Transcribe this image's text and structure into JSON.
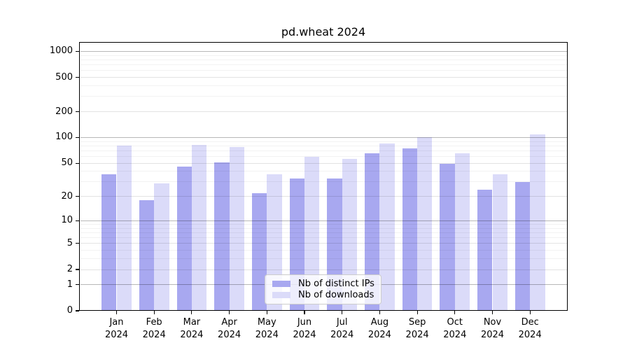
{
  "title": "pd.wheat 2024",
  "chart_data": {
    "type": "bar",
    "title": "pd.wheat 2024",
    "categories": [
      "Jan",
      "Feb",
      "Mar",
      "Apr",
      "May",
      "Jun",
      "Jul",
      "Aug",
      "Sep",
      "Oct",
      "Nov",
      "Dec"
    ],
    "year_label": "2024",
    "series": [
      {
        "name": "Nb of distinct IPs",
        "color": "#a8a8f0",
        "values": [
          37,
          18,
          46,
          51,
          22,
          33,
          33,
          65,
          74,
          49,
          24,
          30
        ]
      },
      {
        "name": "Nb of downloads",
        "color": "#dbdbf9",
        "values": [
          80,
          29,
          82,
          78,
          37,
          59,
          56,
          85,
          101,
          65,
          37,
          108
        ]
      }
    ],
    "yscale": "log1p",
    "yticks": [
      0,
      1,
      2,
      5,
      10,
      20,
      50,
      100,
      200,
      500,
      1000
    ],
    "ylim": [
      0,
      1286
    ],
    "xlabel": "",
    "ylabel": "",
    "grid": "both",
    "legend_position": "lower center"
  },
  "colors": {
    "background": "#ffffff",
    "axis": "#000000",
    "grid_major": "rgba(0,0,0,0.28)",
    "grid_labeled": "rgba(0,0,0,0.11)",
    "grid_minor": "rgba(0,0,0,0.05)"
  }
}
